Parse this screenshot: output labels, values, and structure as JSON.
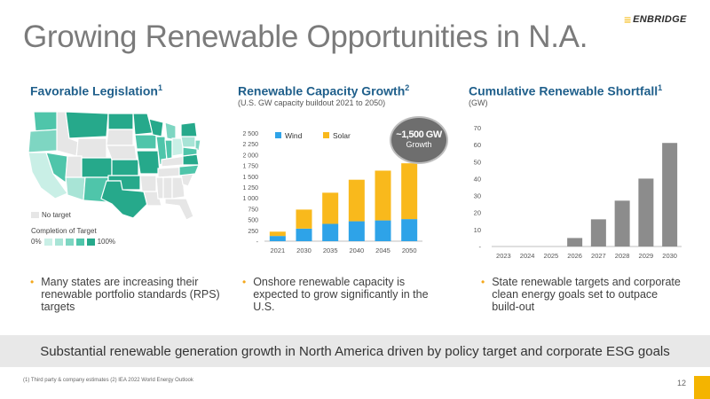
{
  "header": {
    "title": "Growing Renewable Opportunities in N.A.",
    "logo_text": "ENBRIDGE"
  },
  "legislation": {
    "title": "Favorable Legislation",
    "footnote_ref": "1",
    "no_target_label": "No target",
    "completion_label": "Completion of Target",
    "scale_min": "0%",
    "scale_max": "100%",
    "scale_colors": [
      "#c9efe6",
      "#a8e4d6",
      "#7ed6c2",
      "#4fc5aa",
      "#26a98b"
    ],
    "bullet": "Many states are increasing their renewable portfolio standards (RPS) targets"
  },
  "capacity": {
    "title": "Renewable Capacity Growth",
    "footnote_ref": "2",
    "subtitle": "(U.S. GW capacity buildout 2021 to 2050)",
    "badge_value": "~1,500 GW",
    "badge_label": "Growth",
    "bullet": "Onshore renewable capacity is expected to grow significantly in the U.S."
  },
  "shortfall": {
    "title": "Cumulative Renewable Shortfall",
    "footnote_ref": "1",
    "subtitle": "(GW)",
    "bullet": "State renewable targets and corporate clean energy goals set to outpace build-out"
  },
  "chart_data": [
    {
      "type": "bar",
      "stacked": true,
      "categories": [
        "2021",
        "2030",
        "2035",
        "2040",
        "2045",
        "2050"
      ],
      "series": [
        {
          "name": "Wind",
          "color": "#2ea3e8",
          "values": [
            120,
            290,
            400,
            460,
            480,
            510
          ]
        },
        {
          "name": "Solar",
          "color": "#f9b91c",
          "values": [
            100,
            440,
            720,
            960,
            1150,
            1290
          ]
        }
      ],
      "ylim": [
        0,
        2500
      ],
      "yticks": [
        "-",
        "250",
        "500",
        "750",
        "1 000",
        "1 250",
        "1 500",
        "1 750",
        "2 000",
        "2 250",
        "2 500"
      ],
      "legend": "top-left",
      "grid": false
    },
    {
      "type": "bar",
      "categories": [
        "2023",
        "2024",
        "2025",
        "2026",
        "2027",
        "2028",
        "2029",
        "2030"
      ],
      "series": [
        {
          "color": "#8c8c8c",
          "values": [
            0,
            0,
            0,
            5,
            16,
            27,
            40,
            61
          ]
        }
      ],
      "ylim": [
        0,
        70
      ],
      "yticks": [
        "-",
        "10",
        "20",
        "30",
        "40",
        "50",
        "60",
        "70"
      ],
      "grid": false
    }
  ],
  "banner": "Substantial renewable generation growth in North America driven by policy target and corporate ESG goals",
  "footer": {
    "footnote": "(1) Third party & company estimates (2) IEA 2022 World Energy Outlook",
    "page_number": "12"
  }
}
